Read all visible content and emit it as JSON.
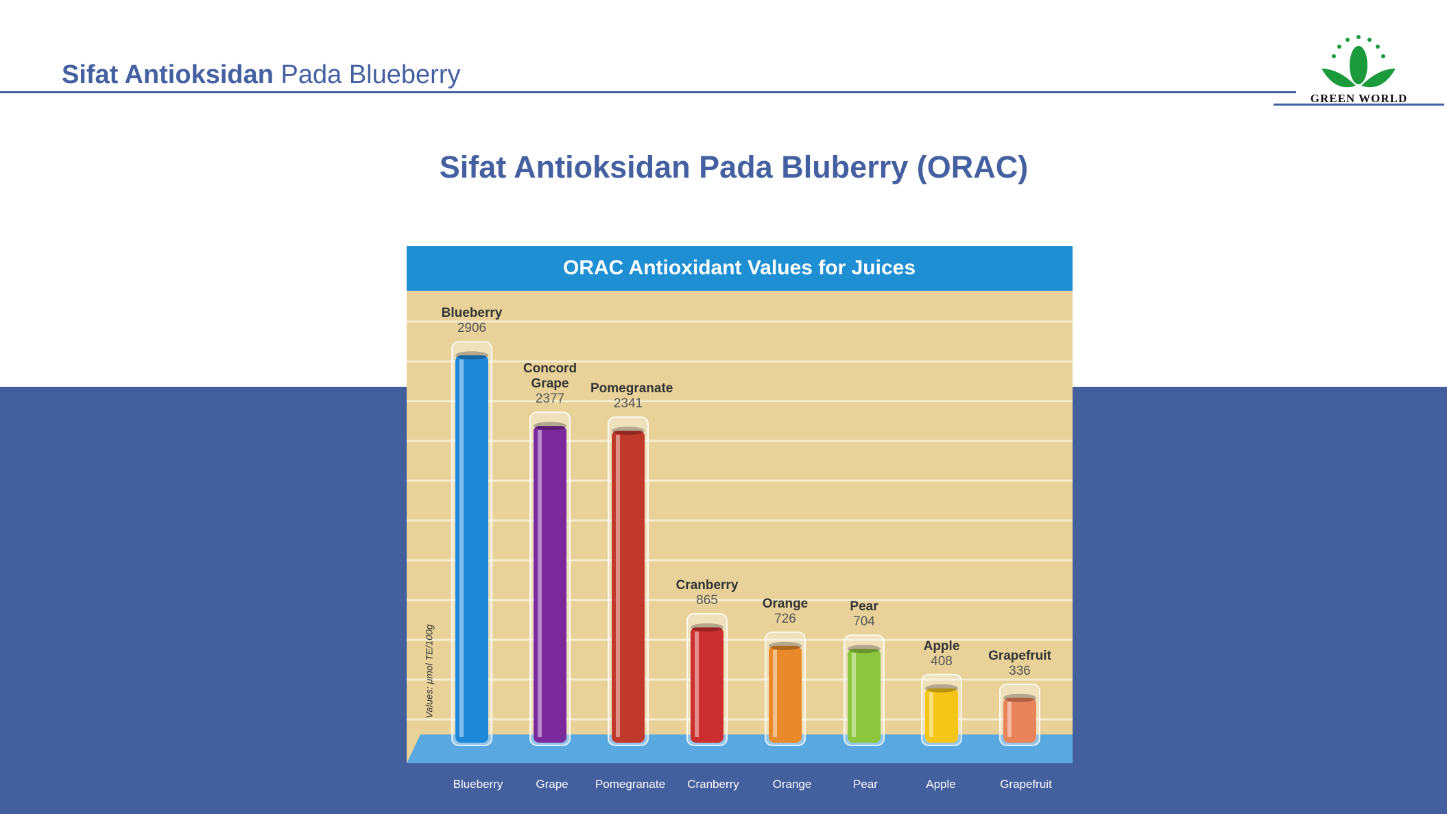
{
  "header": {
    "title_bold": "Sifat Antioksidan",
    "title_rest": "Pada Blueberry"
  },
  "logo": "GREEN WORLD",
  "slide_title": "Sifat Antioksidan Pada Bluberry (ORAC)",
  "chart_data": {
    "type": "bar",
    "title": "ORAC Antioxidant Values for Juices",
    "y_label": "Values: μmol TE/100g",
    "categories": [
      "Blueberry",
      "Concord Grape",
      "Pomegranate",
      "Cranberry",
      "Orange",
      "Pear",
      "Apple",
      "Grapefruit"
    ],
    "values": [
      2906,
      2377,
      2341,
      865,
      726,
      704,
      408,
      336
    ],
    "colors": [
      "#1e88d8",
      "#7b2a9b",
      "#c0392b",
      "#cc2f2f",
      "#e98a2a",
      "#8cc63f",
      "#f5c518",
      "#e8835a"
    ],
    "ylim": [
      0,
      3000
    ]
  },
  "footer_labels": [
    "Blueberry",
    "Grape",
    "Pomegranate",
    "Cranberry",
    "Orange",
    "Pear",
    "Apple",
    "Grapefruit"
  ]
}
